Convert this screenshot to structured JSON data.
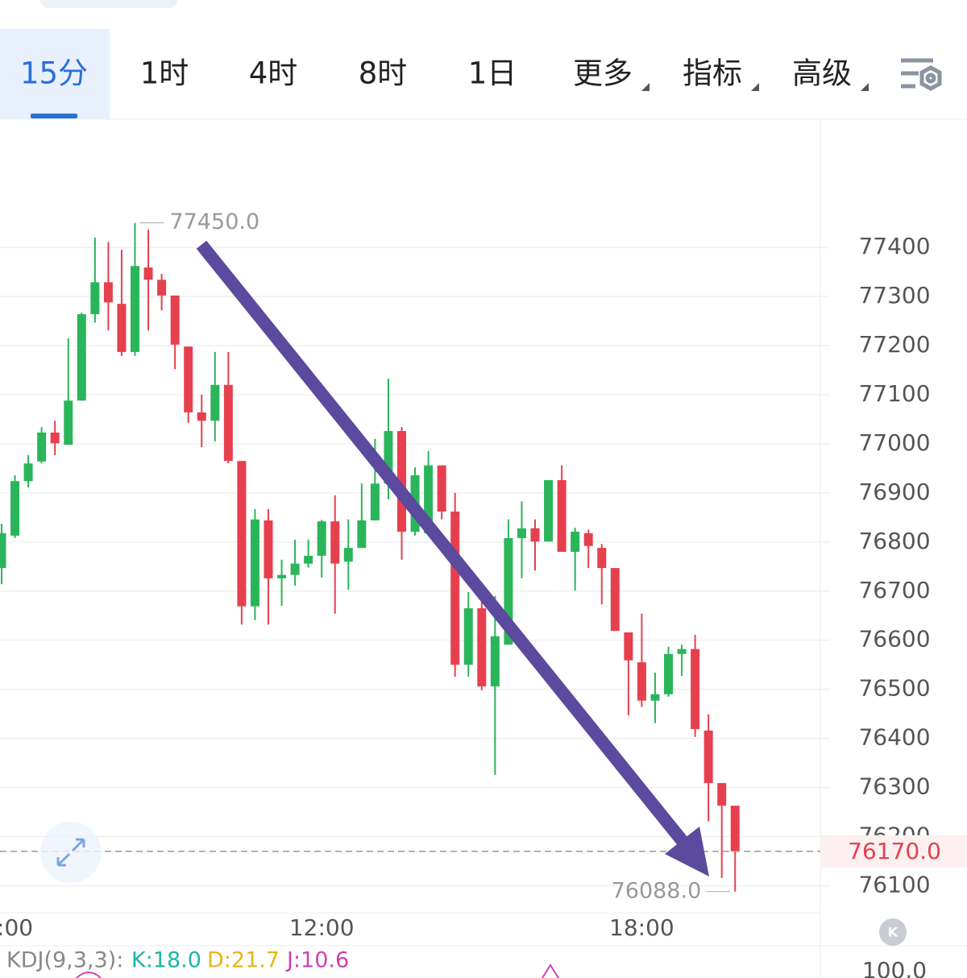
{
  "tabs": [
    "15分",
    "1时",
    "4时",
    "8时",
    "1日",
    "更多",
    "指标",
    "高级"
  ],
  "chart_data": {
    "type": "candlestick",
    "categories": [
      null,
      ":00",
      null,
      null,
      null,
      null,
      null,
      null,
      null,
      null,
      null,
      null,
      null,
      null,
      null,
      null,
      null,
      null,
      null,
      null,
      null,
      null,
      null,
      null,
      "12:00",
      null,
      null,
      null,
      null,
      null,
      null,
      null,
      null,
      null,
      null,
      null,
      null,
      null,
      null,
      null,
      null,
      null,
      null,
      null,
      null,
      null,
      null,
      null,
      "18:00",
      null,
      null,
      null,
      null,
      null,
      null,
      null
    ],
    "open": [
      76747,
      76813,
      76924,
      76964,
      77023,
      76998,
      77088,
      77264,
      77329,
      77285,
      77187,
      77359,
      77334,
      77302,
      77198,
      77064,
      77047,
      77120,
      76965,
      76669,
      76844,
      76726,
      76733,
      76756,
      76772,
      76842,
      76760,
      76788,
      76844,
      76919,
      77026,
      76821,
      76818,
      76956,
      76862,
      76550,
      76665,
      76506,
      76591,
      76808,
      76828,
      76801,
      76926,
      76780,
      76818,
      76788,
      76747,
      76616,
      76555,
      76477,
      76490,
      76572,
      76582,
      76416,
      76309,
      76263
    ],
    "high": [
      76837,
      76936,
      76977,
      77034,
      77047,
      77215,
      77267,
      77420,
      77411,
      77395,
      77450,
      77436,
      77346,
      77302,
      77198,
      77100,
      77187,
      77187,
      76965,
      76867,
      76867,
      76764,
      76805,
      76805,
      76845,
      76895,
      76846,
      76919,
      77010,
      77133,
      77034,
      76952,
      76985,
      76956,
      76900,
      76698,
      76698,
      76690,
      76846,
      76883,
      76846,
      76926,
      76956,
      76829,
      76825,
      76796,
      76747,
      76616,
      76654,
      76534,
      76587,
      76591,
      76611,
      76449,
      76309,
      76263
    ],
    "low": [
      76714,
      76808,
      76911,
      76960,
      76977,
      76998,
      77088,
      77247,
      77231,
      77179,
      77179,
      77231,
      77272,
      77152,
      77042,
      76993,
      77005,
      76960,
      76632,
      76641,
      76632,
      76670,
      76711,
      76748,
      76728,
      76654,
      76703,
      76788,
      76844,
      76887,
      76764,
      76813,
      76818,
      76846,
      76526,
      76526,
      76498,
      76326,
      76591,
      76726,
      76742,
      76801,
      76780,
      76701,
      76747,
      76673,
      76619,
      76447,
      76464,
      76431,
      76485,
      76527,
      76403,
      76231,
      76116,
      76088
    ],
    "close": [
      76818,
      76924,
      76960,
      77023,
      77001,
      77088,
      77264,
      77329,
      77288,
      77187,
      77362,
      77334,
      77302,
      77202,
      77064,
      77047,
      77120,
      76965,
      76669,
      76846,
      76726,
      76733,
      76756,
      76772,
      76842,
      76756,
      76788,
      76844,
      76919,
      77026,
      76821,
      76936,
      76956,
      76862,
      76550,
      76665,
      76506,
      76608,
      76808,
      76828,
      76801,
      76926,
      76780,
      76821,
      76792,
      76747,
      76619,
      76559,
      76477,
      76490,
      76572,
      76582,
      76419,
      76309,
      76263,
      76170
    ],
    "up_color": "#2bb55a",
    "down_color": "#e6404e",
    "ylim": [
      76045,
      77661
    ],
    "yticks": [
      76100,
      76200,
      76300,
      76400,
      76500,
      76600,
      76700,
      76800,
      76900,
      77000,
      77100,
      77200,
      77300,
      77400
    ],
    "grid": true,
    "max_label": {
      "value": 77450,
      "label": "77450.0"
    },
    "min_label": {
      "value": 76088,
      "label": "76088.0"
    },
    "last_price": {
      "value": 76170,
      "label": "76170.0"
    }
  },
  "indicator": {
    "title": "KDJ(9,3,3):",
    "items": [
      {
        "label": "K:18.0",
        "color": "#1fb5a6"
      },
      {
        "label": "D:21.7",
        "color": "#e9b517"
      },
      {
        "label": "J:10.6",
        "color": "#d23fb1"
      }
    ],
    "axis_label": "100.0"
  }
}
